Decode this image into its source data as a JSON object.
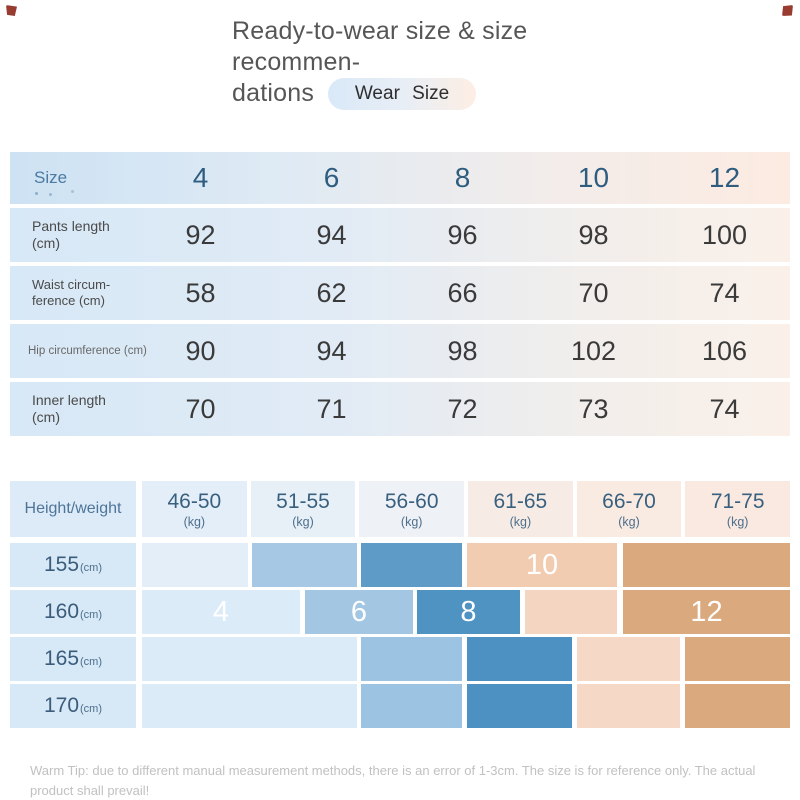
{
  "page": {
    "title_line1": "Ready-to-wear size & size recommen-",
    "title_line2": "dations",
    "badge": "Wear Size",
    "warm_tip": "Warm Tip: due to different manual measurement methods, there is an error of 1-3cm. The size is for reference only. The actual product shall prevail!"
  },
  "colors": {
    "accent_blue_header": "#cde2f3",
    "accent_peach_header": "#fcebe1",
    "zone_pale_blue": "#dcebf8",
    "zone_medium_blue": "#a6c8e4",
    "zone_dark_blue": "#4f93c3",
    "zone_light_peach": "#f4d5c1",
    "zone_peach": "#f2ccb1",
    "zone_tan": "#dba97e"
  },
  "size_table": {
    "header": {
      "label": "Size",
      "columns": [
        "4",
        "6",
        "8",
        "10",
        "12"
      ]
    },
    "rows": [
      {
        "label": "Pants length (cm)",
        "values": [
          "92",
          "94",
          "96",
          "98",
          "100"
        ]
      },
      {
        "label": "Waist circum-ference (cm)",
        "values": [
          "58",
          "62",
          "66",
          "70",
          "74"
        ]
      },
      {
        "label": "Hip circumference (cm)",
        "values": [
          "90",
          "94",
          "98",
          "102",
          "106"
        ]
      },
      {
        "label": "Inner length (cm)",
        "values": [
          "70",
          "71",
          "72",
          "73",
          "74"
        ]
      }
    ]
  },
  "reco_table": {
    "header": {
      "label": "Height/weight",
      "columns": [
        {
          "range": "46-50",
          "unit": "(kg)"
        },
        {
          "range": "51-55",
          "unit": "(kg)"
        },
        {
          "range": "56-60",
          "unit": "(kg)"
        },
        {
          "range": "61-65",
          "unit": "(kg)"
        },
        {
          "range": "66-70",
          "unit": "(kg)"
        },
        {
          "range": "71-75",
          "unit": "(kg)"
        }
      ]
    },
    "rows": [
      {
        "height": "155",
        "unit": "(cm)",
        "blocks": [
          {
            "size": "",
            "color": "#e3eef8"
          },
          {
            "size": "",
            "color": "#a6c8e4"
          },
          {
            "size": "",
            "color": "#5e9bc7"
          },
          {
            "size": "10",
            "color": "#f2ccb1"
          },
          {
            "size": "",
            "color": "#dba97e"
          }
        ]
      },
      {
        "height": "160",
        "unit": "(cm)",
        "blocks": [
          {
            "size": "4",
            "color": "#dcebf8"
          },
          {
            "size": "6",
            "color": "#a3c6e3"
          },
          {
            "size": "8",
            "color": "#4f93c3"
          },
          {
            "size": "",
            "color": "#f4d5c1"
          },
          {
            "size": "12",
            "color": "#dba97e"
          }
        ]
      },
      {
        "height": "165",
        "unit": "(cm)",
        "blocks": [
          {
            "size": "",
            "color": "#dcebf8"
          },
          {
            "size": "",
            "color": "#9cc3e1"
          },
          {
            "size": "",
            "color": "#4c91c2"
          },
          {
            "size": "",
            "color": "#f5d8c5"
          },
          {
            "size": "",
            "color": "#dba97e"
          }
        ]
      },
      {
        "height": "170",
        "unit": "(cm)",
        "blocks": [
          {
            "size": "",
            "color": "#dcebf8"
          },
          {
            "size": "",
            "color": "#9cc3e1"
          },
          {
            "size": "",
            "color": "#4c91c2"
          },
          {
            "size": "",
            "color": "#f5d8c5"
          },
          {
            "size": "",
            "color": "#dba97e"
          }
        ]
      }
    ]
  }
}
